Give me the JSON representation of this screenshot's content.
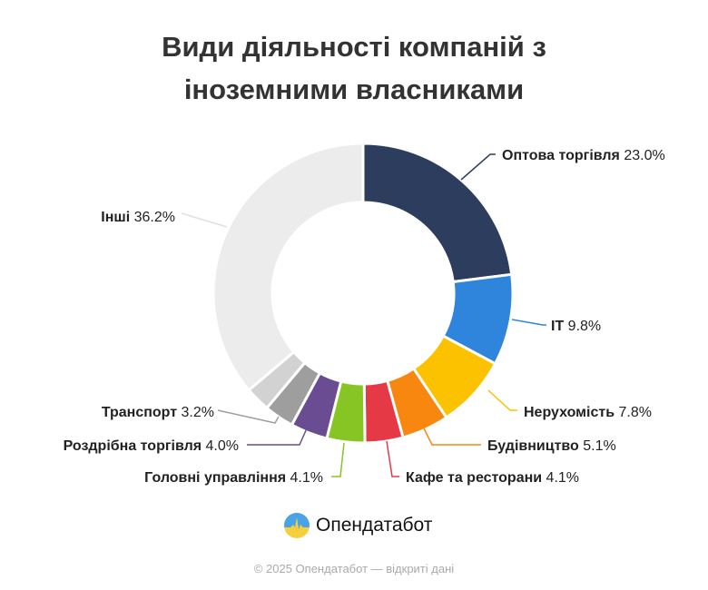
{
  "chart_data": {
    "type": "pie",
    "title": "Види діяльності компаній з іноземними власниками",
    "title_lines": [
      "Види діяльності компаній з",
      "іноземними власниками"
    ],
    "donut": true,
    "unit": "%",
    "slices": [
      {
        "label": "Оптова торгівля",
        "value": 23.0,
        "value_text": "23.0%",
        "color": "#2d3d5e"
      },
      {
        "label": "IT",
        "value": 9.8,
        "value_text": "9.8%",
        "color": "#2f85dc"
      },
      {
        "label": "Нерухомість",
        "value": 7.8,
        "value_text": "7.8%",
        "color": "#fcc200"
      },
      {
        "label": "Будівництво",
        "value": 5.1,
        "value_text": "5.1%",
        "color": "#f7870f"
      },
      {
        "label": "Кафе та ресторани",
        "value": 4.1,
        "value_text": "4.1%",
        "color": "#e63946"
      },
      {
        "label": "Головні управління",
        "value": 4.1,
        "value_text": "4.1%",
        "color": "#86c524"
      },
      {
        "label": "Роздрібна торгівля",
        "value": 4.0,
        "value_text": "4.0%",
        "color": "#6a4c93"
      },
      {
        "label": "Транспорт",
        "value": 3.2,
        "value_text": "3.2%",
        "color": "#9e9e9e"
      },
      {
        "label": "",
        "value": 2.7,
        "value_text": "",
        "color": "#d2d2d2"
      },
      {
        "label": "Інші",
        "value": 36.2,
        "value_text": "36.2%",
        "color": "#ececec"
      }
    ]
  },
  "footer": {
    "brand": "Опендатабот",
    "copyright": "© 2025 Опендатабот — відкриті дані"
  }
}
